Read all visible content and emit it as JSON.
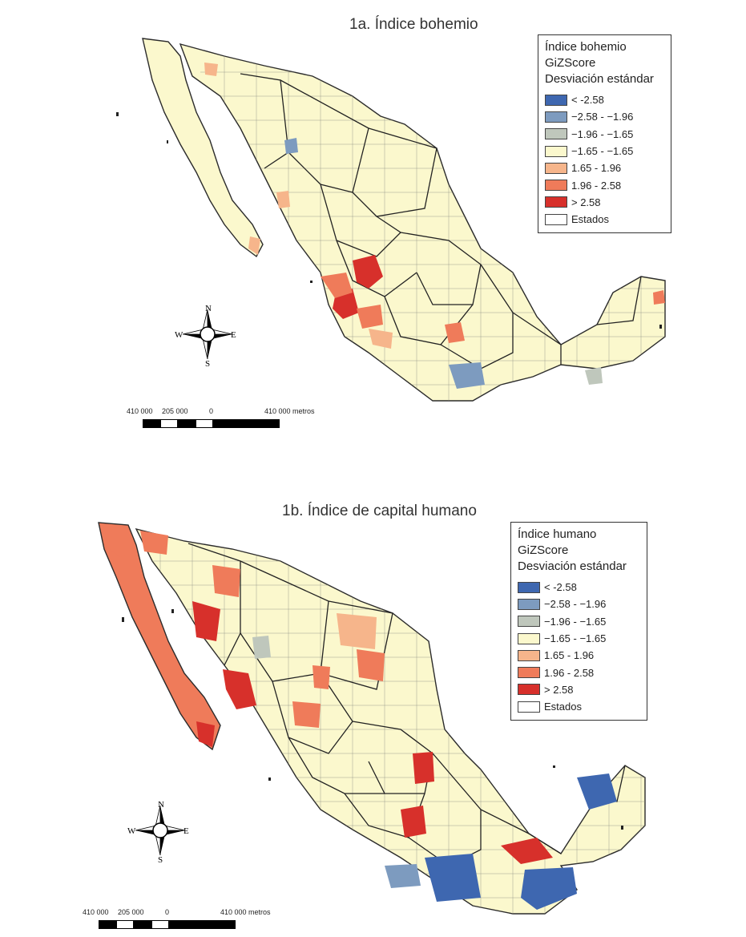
{
  "colors": {
    "lt_258": "#3e67b0",
    "r258_196": "#7d9bbf",
    "r196_165": "#bfc7bc",
    "r165_165": "#fbf8cd",
    "p165_196": "#f6b58b",
    "p196_258": "#ef7b5a",
    "gt_258": "#d7302b",
    "estados": "#ffffff",
    "border": "#2b2b2b"
  },
  "legend_items": [
    {
      "label": "< -2.58",
      "color_key": "lt_258"
    },
    {
      "label": "−2.58 - −1.96",
      "color_key": "r258_196"
    },
    {
      "label": "−1.96 - −1.65",
      "color_key": "r196_165"
    },
    {
      "label": "−1.65 - −1.65",
      "color_key": "r165_165"
    },
    {
      "label": "1.65 - 1.96",
      "color_key": "p165_196"
    },
    {
      "label": "1.96 - 2.58",
      "color_key": "p196_258"
    },
    {
      "label": "> 2.58",
      "color_key": "gt_258"
    },
    {
      "label": "Estados",
      "color_key": "estados"
    }
  ],
  "panels": [
    {
      "title": "1a. Índice bohemio",
      "legend_heading": [
        "Índice bohemio",
        "GiZScore",
        "Desviación estándar"
      ]
    },
    {
      "title": "1b. Índice de capital humano",
      "legend_heading": [
        "Índice humano",
        "GiZScore",
        "Desviación estándar"
      ]
    }
  ],
  "compass": {
    "n": "N",
    "s": "S",
    "e": "E",
    "w": "W"
  },
  "scale": {
    "labels": [
      "410 000",
      "205 000",
      "0",
      "410 000 metros"
    ]
  }
}
